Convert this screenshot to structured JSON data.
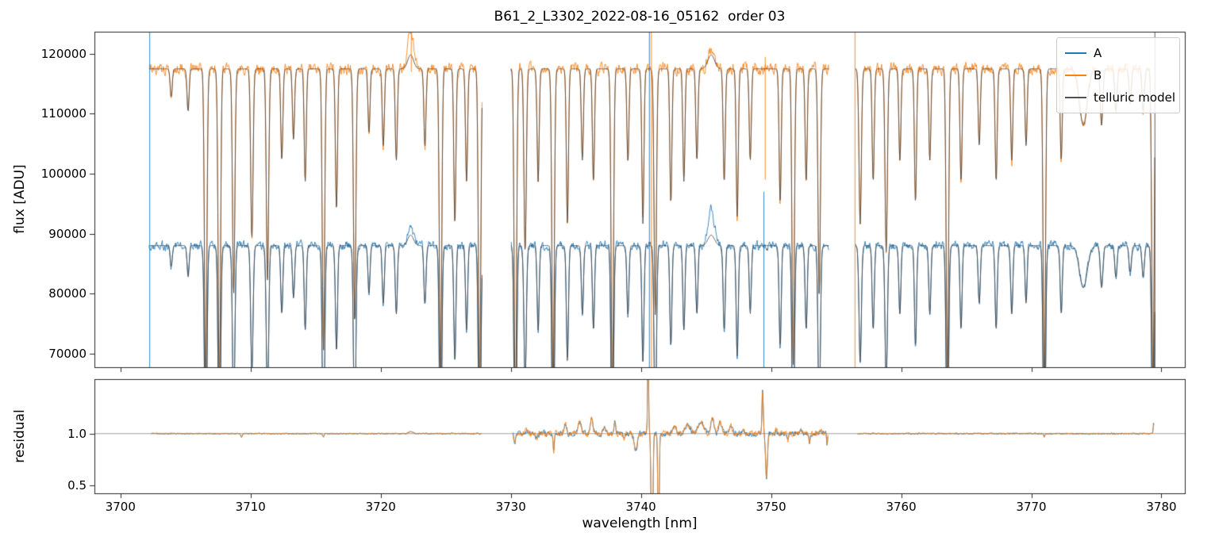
{
  "chart_data": {
    "type": "line",
    "title": "B61_2_L3302_2022-08-16_05162  order 03",
    "xlabel": "wavelength [nm]",
    "ylabel_top": "flux [ADU]",
    "ylabel_res": "residual",
    "x": {
      "lim": [
        3698.0,
        3781.8
      ],
      "ticks": [
        3700,
        3710,
        3720,
        3730,
        3740,
        3750,
        3760,
        3770,
        3780
      ]
    },
    "top_axis": {
      "ylim": [
        67700,
        123700
      ],
      "ticks": [
        70000,
        80000,
        90000,
        100000,
        110000,
        120000
      ]
    },
    "res_axis": {
      "ylim": [
        0.42,
        1.53
      ],
      "ticks": [
        0.5,
        1.0
      ],
      "hline": 1.0
    },
    "legend": [
      {
        "label": "A",
        "color": "#1f77b4"
      },
      {
        "label": "B",
        "color": "#ff7f0e"
      },
      {
        "label": "telluric model",
        "color": "#4f4f4f"
      }
    ],
    "series": {
      "A": {
        "baseline": 88000,
        "noise": 0.008,
        "color": "#1f77b4"
      },
      "B": {
        "baseline": 117500,
        "noise": 0.008,
        "color": "#ff7f0e"
      },
      "model": {
        "color": "#4f4f4f"
      }
    },
    "segments": [
      [
        3702.2,
        3727.8
      ],
      [
        3730.0,
        3754.45
      ],
      [
        3756.5,
        3779.5
      ]
    ],
    "absorption_lines": [
      [
        3703.9,
        0.04,
        0.08
      ],
      [
        3705.2,
        0.06,
        0.08
      ],
      [
        3706.55,
        0.46,
        0.09
      ],
      [
        3707.6,
        0.46,
        0.09
      ],
      [
        3708.7,
        0.32,
        0.09
      ],
      [
        3710.1,
        0.24,
        0.09
      ],
      [
        3711.3,
        0.3,
        0.09
      ],
      [
        3712.4,
        0.13,
        0.08
      ],
      [
        3713.3,
        0.1,
        0.08
      ],
      [
        3714.2,
        0.16,
        0.08
      ],
      [
        3715.6,
        0.4,
        0.09
      ],
      [
        3716.6,
        0.2,
        0.08
      ],
      [
        3718.0,
        0.36,
        0.09
      ],
      [
        3719.1,
        0.09,
        0.08
      ],
      [
        3720.2,
        0.11,
        0.08
      ],
      [
        3721.2,
        0.13,
        0.08
      ],
      [
        3723.4,
        0.11,
        0.08
      ],
      [
        3724.6,
        0.44,
        0.09
      ],
      [
        3725.7,
        0.22,
        0.08
      ],
      [
        3726.6,
        0.16,
        0.08
      ],
      [
        3727.6,
        0.46,
        0.09
      ],
      [
        3730.35,
        0.5,
        0.09
      ],
      [
        3731.1,
        0.26,
        0.09
      ],
      [
        3732.1,
        0.16,
        0.08
      ],
      [
        3733.25,
        0.46,
        0.09
      ],
      [
        3734.35,
        0.22,
        0.08
      ],
      [
        3735.5,
        0.13,
        0.08
      ],
      [
        3736.35,
        0.16,
        0.08
      ],
      [
        3737.8,
        0.46,
        0.09
      ],
      [
        3739.0,
        0.13,
        0.08
      ],
      [
        3740.15,
        0.22,
        0.08
      ],
      [
        3741.1,
        0.35,
        0.09
      ],
      [
        3742.3,
        0.19,
        0.08
      ],
      [
        3743.3,
        0.16,
        0.08
      ],
      [
        3744.3,
        0.13,
        0.08
      ],
      [
        3746.4,
        0.16,
        0.08
      ],
      [
        3747.4,
        0.21,
        0.08
      ],
      [
        3748.4,
        0.13,
        0.08
      ],
      [
        3750.7,
        0.19,
        0.08
      ],
      [
        3751.7,
        0.42,
        0.09
      ],
      [
        3752.7,
        0.16,
        0.08
      ],
      [
        3753.7,
        0.32,
        0.09
      ],
      [
        3756.85,
        0.22,
        0.09
      ],
      [
        3757.85,
        0.16,
        0.08
      ],
      [
        3758.85,
        0.26,
        0.09
      ],
      [
        3759.9,
        0.13,
        0.08
      ],
      [
        3761.1,
        0.19,
        0.08
      ],
      [
        3762.2,
        0.13,
        0.08
      ],
      [
        3763.55,
        0.44,
        0.09
      ],
      [
        3764.6,
        0.16,
        0.08
      ],
      [
        3766.0,
        0.11,
        0.08
      ],
      [
        3767.3,
        0.16,
        0.08
      ],
      [
        3768.5,
        0.13,
        0.08
      ],
      [
        3769.6,
        0.11,
        0.08
      ],
      [
        3771.0,
        0.46,
        0.09
      ],
      [
        3772.3,
        0.13,
        0.08
      ],
      [
        3774.0,
        0.08,
        0.3
      ],
      [
        3775.4,
        0.08,
        0.1
      ],
      [
        3776.5,
        0.06,
        0.09
      ],
      [
        3777.6,
        0.05,
        0.09
      ],
      [
        3778.6,
        0.06,
        0.09
      ],
      [
        3779.35,
        0.46,
        0.09
      ]
    ],
    "emission_bumps": [
      [
        3722.3,
        0.22,
        0.03,
        0.055,
        0.02
      ],
      [
        3745.4,
        0.25,
        0.07,
        0.028,
        0.02
      ]
    ],
    "spikes": [
      {
        "x": 3702.25,
        "series": "A"
      },
      {
        "x": 3722.35,
        "series": "B",
        "v0": 117000,
        "v1": 123700
      },
      {
        "x": 3740.65,
        "series": "A"
      },
      {
        "x": 3740.8,
        "series": "B"
      },
      {
        "x": 3749.45,
        "series": "A",
        "v0": 67700,
        "v1": 97000
      },
      {
        "x": 3749.55,
        "series": "B",
        "v0": 99000,
        "v1": 119500
      },
      {
        "x": 3756.45,
        "series": "B"
      },
      {
        "x": 3779.5,
        "series": "model"
      }
    ],
    "residual": {
      "noise_per_segment": [
        0.006,
        0.028,
        0.007
      ],
      "features": [
        [
          3709.3,
          -0.035,
          0.05
        ],
        [
          3715.6,
          -0.03,
          0.05
        ],
        [
          3722.3,
          0.02,
          0.15
        ],
        [
          3730.3,
          -0.1,
          0.07
        ],
        [
          3731.2,
          0.04,
          0.1
        ],
        [
          3732.0,
          -0.04,
          0.08
        ],
        [
          3733.3,
          -0.17,
          0.05
        ],
        [
          3734.2,
          0.09,
          0.1
        ],
        [
          3735.3,
          0.12,
          0.12
        ],
        [
          3736.2,
          0.14,
          0.1
        ],
        [
          3737.2,
          0.06,
          0.1
        ],
        [
          3738.0,
          0.13,
          0.06
        ],
        [
          3738.7,
          -0.05,
          0.06
        ],
        [
          3739.6,
          -0.16,
          0.12
        ],
        [
          3740.55,
          0.85,
          0.04
        ],
        [
          3740.85,
          -1.6,
          0.06
        ],
        [
          3741.35,
          -1.2,
          0.05
        ],
        [
          3742.6,
          0.06,
          0.15
        ],
        [
          3743.6,
          0.09,
          0.2
        ],
        [
          3744.6,
          0.12,
          0.2
        ],
        [
          3745.5,
          0.16,
          0.12
        ],
        [
          3746.1,
          0.1,
          0.12
        ],
        [
          3746.9,
          0.08,
          0.1
        ],
        [
          3747.9,
          0.04,
          0.1
        ],
        [
          3749.35,
          0.42,
          0.05
        ],
        [
          3749.65,
          -0.43,
          0.07
        ],
        [
          3750.4,
          0.03,
          0.08
        ],
        [
          3751.3,
          -0.06,
          0.06
        ],
        [
          3752.3,
          0.03,
          0.08
        ],
        [
          3752.95,
          -0.09,
          0.05
        ],
        [
          3753.8,
          0.04,
          0.06
        ],
        [
          3754.3,
          -0.1,
          0.04
        ],
        [
          3771.0,
          -0.03,
          0.05
        ],
        [
          3779.4,
          0.1,
          0.03
        ]
      ]
    }
  }
}
